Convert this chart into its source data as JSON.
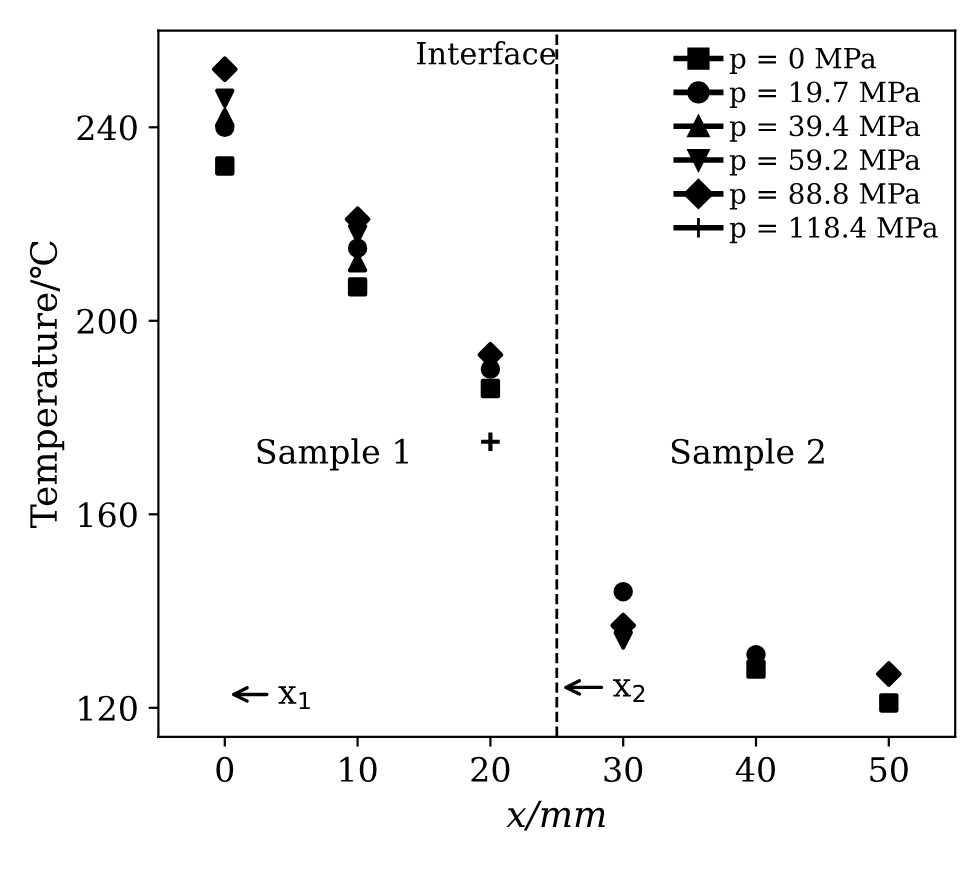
{
  "chart_data": {
    "type": "scatter",
    "xlabel": "x/mm",
    "ylabel": "Temperature/℃",
    "x": [
      0,
      10,
      20,
      30,
      40,
      50
    ],
    "xlim": [
      -5,
      55
    ],
    "xticks": [
      0,
      10,
      20,
      30,
      40,
      50
    ],
    "ylim": [
      114,
      260
    ],
    "yticks": [
      120,
      160,
      200,
      240
    ],
    "grid": false,
    "legend": "top right",
    "series": [
      {
        "name": "p = 0 MPa",
        "color": "#000000",
        "marker": "square",
        "values": [
          232,
          207,
          186,
          null,
          128,
          121
        ]
      },
      {
        "name": "p = 19.7 MPa",
        "color": "#000000",
        "marker": "circle",
        "values": [
          240,
          215,
          190,
          144,
          131,
          null
        ]
      },
      {
        "name": "p = 39.4 MPa",
        "color": "#000000",
        "marker": "triangle",
        "values": [
          242,
          212,
          null,
          null,
          null,
          null
        ]
      },
      {
        "name": "p = 59.2 MPa",
        "color": "#000000",
        "marker": "triangle_down",
        "values": [
          246,
          218,
          null,
          134,
          null,
          null
        ]
      },
      {
        "name": "p = 88.8 MPa",
        "color": "#000000",
        "marker": "diamond",
        "values": [
          252,
          221,
          193,
          137,
          null,
          127
        ]
      },
      {
        "name": "p = 118.4 MPa",
        "color": "#000000",
        "marker": "cross",
        "values": [
          null,
          null,
          175,
          null,
          null,
          null
        ]
      }
    ],
    "ref_lines": [
      {
        "axis": "x",
        "value": 25,
        "label": "Interface",
        "line_style": "dashed",
        "color": "#000000"
      }
    ],
    "annotations": [
      "Sample 1",
      "Sample 2",
      "x$_{1}$",
      "x$_{2}$"
    ]
  }
}
